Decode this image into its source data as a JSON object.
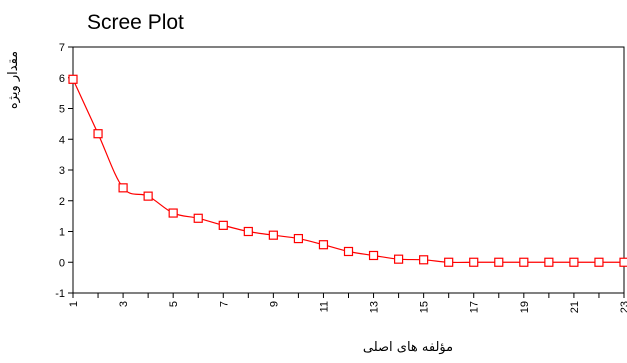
{
  "chart_data": {
    "type": "line",
    "title": "Scree Plot",
    "xlabel": "مؤلفه های اصلی",
    "ylabel": "مقدار ویژه",
    "x": [
      1,
      2,
      3,
      4,
      5,
      6,
      7,
      8,
      9,
      10,
      11,
      12,
      13,
      14,
      15,
      16,
      17,
      18,
      19,
      20,
      21,
      22,
      23
    ],
    "x_tick_labels": [
      "1",
      "3",
      "5",
      "7",
      "9",
      "11",
      "13",
      "15",
      "17",
      "19",
      "21",
      "23"
    ],
    "values": [
      5.95,
      4.18,
      2.42,
      2.15,
      1.6,
      1.43,
      1.2,
      1.0,
      0.88,
      0.77,
      0.57,
      0.35,
      0.22,
      0.1,
      0.08,
      0.0,
      0.0,
      0.0,
      0.0,
      0.0,
      0.0,
      0.0,
      0.0
    ],
    "y_ticks": [
      -1,
      0,
      1,
      2,
      3,
      4,
      5,
      6,
      7
    ],
    "xlim": [
      1,
      23
    ],
    "ylim": [
      -1,
      7
    ],
    "grid": false,
    "series_color": "#ff0000",
    "marker": "open-square"
  }
}
